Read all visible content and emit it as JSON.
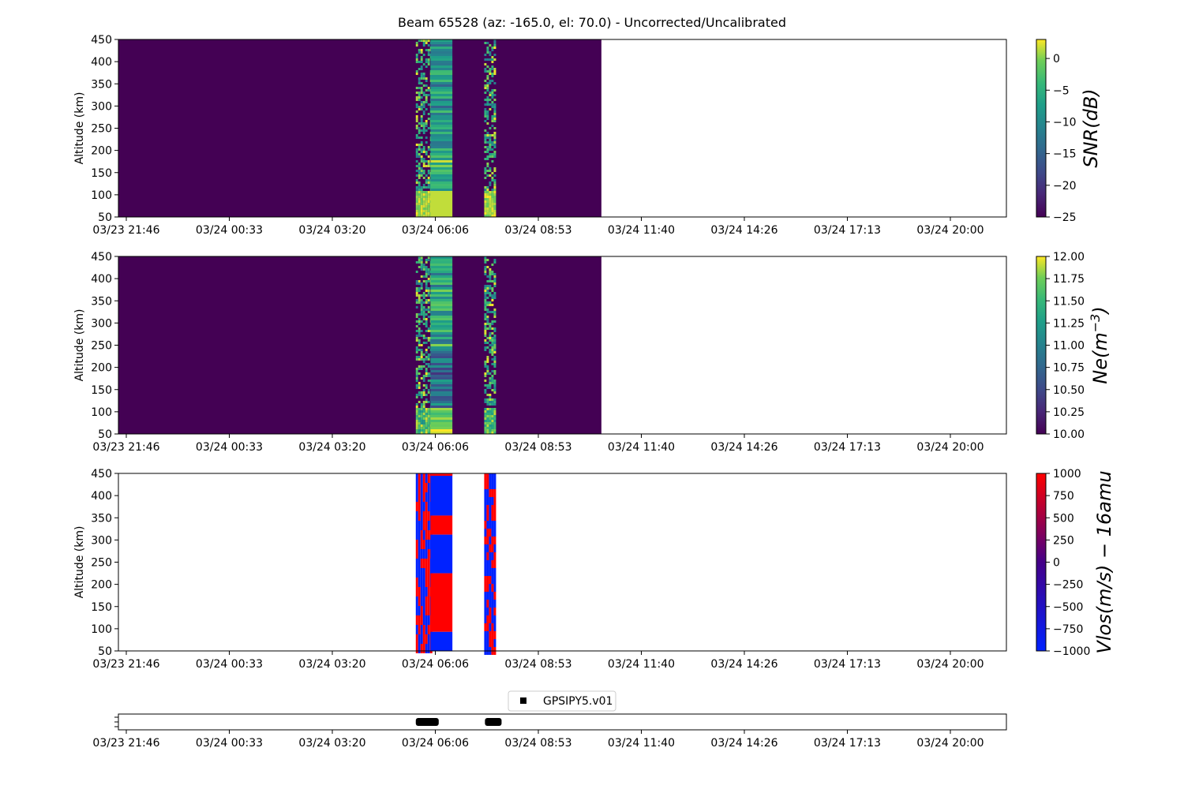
{
  "title": "Beam 65528 (az: -165.0, el: 70.0) - Uncorrected/Uncalibrated",
  "colors": {
    "viridis_low": "#440154",
    "viridis_high": "#fde725",
    "vlos_low": "#0022ff",
    "vlos_high": "#ff0000"
  },
  "chart_data": [
    {
      "type": "heatmap",
      "name": "snr",
      "ylabel": "Altitude (km)",
      "ylim": [
        50,
        450
      ],
      "yticks": [
        "50",
        "100",
        "150",
        "200",
        "250",
        "300",
        "350",
        "400",
        "450"
      ],
      "xtick_labels": [
        "03/23 21:46",
        "03/24 00:33",
        "03/24 03:20",
        "03/24 06:06",
        "03/24 08:53",
        "03/24 11:40",
        "03/24 14:26",
        "03/24 17:13",
        "03/24 20:00"
      ],
      "data_extent_hours": [
        0,
        12.85
      ],
      "burst_windows_hours": [
        [
          7.83,
          8.82
        ],
        [
          9.68,
          10.0
        ]
      ],
      "colorbar": {
        "label": "SNR(dB)",
        "colormap": "viridis",
        "range": [
          -25,
          3
        ],
        "ticks": [
          "0",
          "−5",
          "−10",
          "−15",
          "−20",
          "−25"
        ],
        "tick_values": [
          0,
          -5,
          -10,
          -15,
          -20,
          -25
        ]
      }
    },
    {
      "type": "heatmap",
      "name": "ne",
      "ylabel": "Altitude (km)",
      "ylim": [
        50,
        450
      ],
      "yticks": [
        "50",
        "100",
        "150",
        "200",
        "250",
        "300",
        "350",
        "400",
        "450"
      ],
      "xtick_labels": [
        "03/23 21:46",
        "03/24 00:33",
        "03/24 03:20",
        "03/24 06:06",
        "03/24 08:53",
        "03/24 11:40",
        "03/24 14:26",
        "03/24 17:13",
        "03/24 20:00"
      ],
      "data_extent_hours": [
        0,
        12.85
      ],
      "burst_windows_hours": [
        [
          7.83,
          8.82
        ],
        [
          9.68,
          10.0
        ]
      ],
      "colorbar": {
        "label_base": "Ne(m",
        "label_sup": "−3",
        "label_close": ")",
        "colormap": "viridis",
        "range": [
          10,
          12
        ],
        "ticks": [
          "12.00",
          "11.75",
          "11.50",
          "11.25",
          "11.00",
          "10.75",
          "10.50",
          "10.25",
          "10.00"
        ],
        "tick_values": [
          12,
          11.75,
          11.5,
          11.25,
          11,
          10.75,
          10.5,
          10.25,
          10
        ]
      }
    },
    {
      "type": "heatmap",
      "name": "vlos",
      "ylabel": "Altitude (km)",
      "ylim": [
        50,
        450
      ],
      "yticks": [
        "50",
        "100",
        "150",
        "200",
        "250",
        "300",
        "350",
        "400",
        "450"
      ],
      "xtick_labels": [
        "03/23 21:46",
        "03/24 00:33",
        "03/24 03:20",
        "03/24 06:06",
        "03/24 08:53",
        "03/24 11:40",
        "03/24 14:26",
        "03/24 17:13",
        "03/24 20:00"
      ],
      "burst_windows_hours": [
        [
          7.83,
          8.82
        ],
        [
          9.68,
          10.0
        ]
      ],
      "colorbar": {
        "label": "Vlos(m/s) − 16amu",
        "colormap": "bwr",
        "range": [
          -1000,
          1000
        ],
        "ticks": [
          "1000",
          "750",
          "500",
          "250",
          "0",
          "−250",
          "−500",
          "−750",
          "−1000"
        ],
        "tick_values": [
          1000,
          750,
          500,
          250,
          0,
          -250,
          -500,
          -750,
          -1000
        ]
      }
    },
    {
      "type": "scatter",
      "name": "experiments",
      "legend": "GPSIPY5.v01",
      "legend_position": "top-center",
      "xtick_labels": [
        "03/23 21:46",
        "03/24 00:33",
        "03/24 03:20",
        "03/24 06:06",
        "03/24 08:53",
        "03/24 11:40",
        "03/24 14:26",
        "03/24 17:13",
        "03/24 20:00"
      ],
      "marker_spans_hours": [
        [
          7.83,
          8.45
        ],
        [
          9.7,
          10.15
        ]
      ]
    }
  ]
}
